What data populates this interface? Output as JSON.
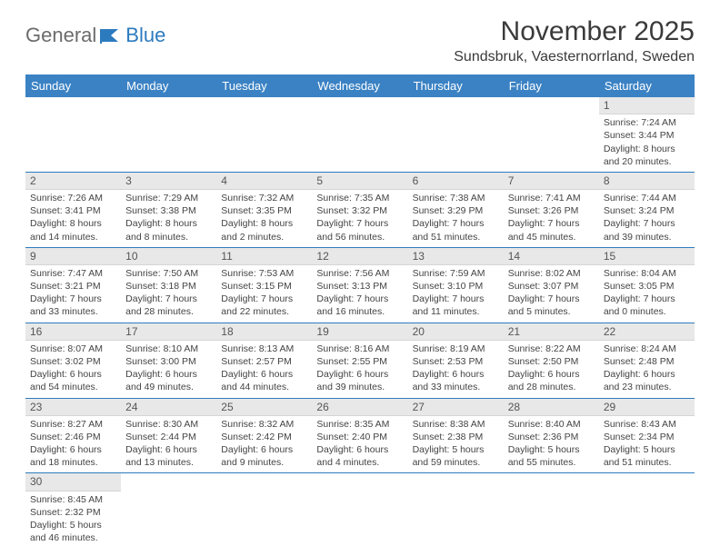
{
  "logo": {
    "text1": "General",
    "text2": "Blue"
  },
  "title": "November 2025",
  "location": "Sundsbruk, Vaesternorrland, Sweden",
  "colors": {
    "header_bg": "#3b82c4",
    "header_text": "#ffffff",
    "daynum_bg": "#e8e8e8",
    "border": "#2d7bbf",
    "logo_gray": "#6b6b6b",
    "logo_blue": "#2d7bbf"
  },
  "days_of_week": [
    "Sunday",
    "Monday",
    "Tuesday",
    "Wednesday",
    "Thursday",
    "Friday",
    "Saturday"
  ],
  "weeks": [
    [
      null,
      null,
      null,
      null,
      null,
      null,
      {
        "n": "1",
        "sr": "Sunrise: 7:24 AM",
        "ss": "Sunset: 3:44 PM",
        "d1": "Daylight: 8 hours",
        "d2": "and 20 minutes."
      }
    ],
    [
      {
        "n": "2",
        "sr": "Sunrise: 7:26 AM",
        "ss": "Sunset: 3:41 PM",
        "d1": "Daylight: 8 hours",
        "d2": "and 14 minutes."
      },
      {
        "n": "3",
        "sr": "Sunrise: 7:29 AM",
        "ss": "Sunset: 3:38 PM",
        "d1": "Daylight: 8 hours",
        "d2": "and 8 minutes."
      },
      {
        "n": "4",
        "sr": "Sunrise: 7:32 AM",
        "ss": "Sunset: 3:35 PM",
        "d1": "Daylight: 8 hours",
        "d2": "and 2 minutes."
      },
      {
        "n": "5",
        "sr": "Sunrise: 7:35 AM",
        "ss": "Sunset: 3:32 PM",
        "d1": "Daylight: 7 hours",
        "d2": "and 56 minutes."
      },
      {
        "n": "6",
        "sr": "Sunrise: 7:38 AM",
        "ss": "Sunset: 3:29 PM",
        "d1": "Daylight: 7 hours",
        "d2": "and 51 minutes."
      },
      {
        "n": "7",
        "sr": "Sunrise: 7:41 AM",
        "ss": "Sunset: 3:26 PM",
        "d1": "Daylight: 7 hours",
        "d2": "and 45 minutes."
      },
      {
        "n": "8",
        "sr": "Sunrise: 7:44 AM",
        "ss": "Sunset: 3:24 PM",
        "d1": "Daylight: 7 hours",
        "d2": "and 39 minutes."
      }
    ],
    [
      {
        "n": "9",
        "sr": "Sunrise: 7:47 AM",
        "ss": "Sunset: 3:21 PM",
        "d1": "Daylight: 7 hours",
        "d2": "and 33 minutes."
      },
      {
        "n": "10",
        "sr": "Sunrise: 7:50 AM",
        "ss": "Sunset: 3:18 PM",
        "d1": "Daylight: 7 hours",
        "d2": "and 28 minutes."
      },
      {
        "n": "11",
        "sr": "Sunrise: 7:53 AM",
        "ss": "Sunset: 3:15 PM",
        "d1": "Daylight: 7 hours",
        "d2": "and 22 minutes."
      },
      {
        "n": "12",
        "sr": "Sunrise: 7:56 AM",
        "ss": "Sunset: 3:13 PM",
        "d1": "Daylight: 7 hours",
        "d2": "and 16 minutes."
      },
      {
        "n": "13",
        "sr": "Sunrise: 7:59 AM",
        "ss": "Sunset: 3:10 PM",
        "d1": "Daylight: 7 hours",
        "d2": "and 11 minutes."
      },
      {
        "n": "14",
        "sr": "Sunrise: 8:02 AM",
        "ss": "Sunset: 3:07 PM",
        "d1": "Daylight: 7 hours",
        "d2": "and 5 minutes."
      },
      {
        "n": "15",
        "sr": "Sunrise: 8:04 AM",
        "ss": "Sunset: 3:05 PM",
        "d1": "Daylight: 7 hours",
        "d2": "and 0 minutes."
      }
    ],
    [
      {
        "n": "16",
        "sr": "Sunrise: 8:07 AM",
        "ss": "Sunset: 3:02 PM",
        "d1": "Daylight: 6 hours",
        "d2": "and 54 minutes."
      },
      {
        "n": "17",
        "sr": "Sunrise: 8:10 AM",
        "ss": "Sunset: 3:00 PM",
        "d1": "Daylight: 6 hours",
        "d2": "and 49 minutes."
      },
      {
        "n": "18",
        "sr": "Sunrise: 8:13 AM",
        "ss": "Sunset: 2:57 PM",
        "d1": "Daylight: 6 hours",
        "d2": "and 44 minutes."
      },
      {
        "n": "19",
        "sr": "Sunrise: 8:16 AM",
        "ss": "Sunset: 2:55 PM",
        "d1": "Daylight: 6 hours",
        "d2": "and 39 minutes."
      },
      {
        "n": "20",
        "sr": "Sunrise: 8:19 AM",
        "ss": "Sunset: 2:53 PM",
        "d1": "Daylight: 6 hours",
        "d2": "and 33 minutes."
      },
      {
        "n": "21",
        "sr": "Sunrise: 8:22 AM",
        "ss": "Sunset: 2:50 PM",
        "d1": "Daylight: 6 hours",
        "d2": "and 28 minutes."
      },
      {
        "n": "22",
        "sr": "Sunrise: 8:24 AM",
        "ss": "Sunset: 2:48 PM",
        "d1": "Daylight: 6 hours",
        "d2": "and 23 minutes."
      }
    ],
    [
      {
        "n": "23",
        "sr": "Sunrise: 8:27 AM",
        "ss": "Sunset: 2:46 PM",
        "d1": "Daylight: 6 hours",
        "d2": "and 18 minutes."
      },
      {
        "n": "24",
        "sr": "Sunrise: 8:30 AM",
        "ss": "Sunset: 2:44 PM",
        "d1": "Daylight: 6 hours",
        "d2": "and 13 minutes."
      },
      {
        "n": "25",
        "sr": "Sunrise: 8:32 AM",
        "ss": "Sunset: 2:42 PM",
        "d1": "Daylight: 6 hours",
        "d2": "and 9 minutes."
      },
      {
        "n": "26",
        "sr": "Sunrise: 8:35 AM",
        "ss": "Sunset: 2:40 PM",
        "d1": "Daylight: 6 hours",
        "d2": "and 4 minutes."
      },
      {
        "n": "27",
        "sr": "Sunrise: 8:38 AM",
        "ss": "Sunset: 2:38 PM",
        "d1": "Daylight: 5 hours",
        "d2": "and 59 minutes."
      },
      {
        "n": "28",
        "sr": "Sunrise: 8:40 AM",
        "ss": "Sunset: 2:36 PM",
        "d1": "Daylight: 5 hours",
        "d2": "and 55 minutes."
      },
      {
        "n": "29",
        "sr": "Sunrise: 8:43 AM",
        "ss": "Sunset: 2:34 PM",
        "d1": "Daylight: 5 hours",
        "d2": "and 51 minutes."
      }
    ],
    [
      {
        "n": "30",
        "sr": "Sunrise: 8:45 AM",
        "ss": "Sunset: 2:32 PM",
        "d1": "Daylight: 5 hours",
        "d2": "and 46 minutes."
      },
      null,
      null,
      null,
      null,
      null,
      null
    ]
  ]
}
